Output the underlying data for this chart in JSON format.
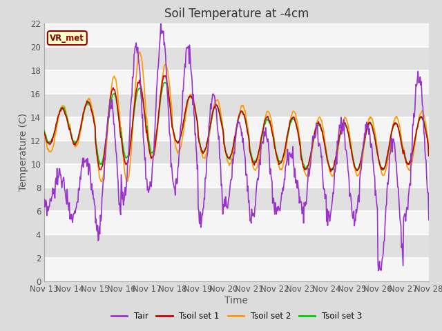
{
  "title": "Soil Temperature at -4cm",
  "xlabel": "Time",
  "ylabel": "Temperature (C)",
  "ylim": [
    0,
    22
  ],
  "yticks": [
    0,
    2,
    4,
    6,
    8,
    10,
    12,
    14,
    16,
    18,
    20,
    22
  ],
  "xtick_labels": [
    "Nov 13",
    "Nov 14",
    "Nov 15",
    "Nov 16",
    "Nov 17",
    "Nov 18",
    "Nov 19",
    "Nov 20",
    "Nov 21",
    "Nov 22",
    "Nov 23",
    "Nov 24",
    "Nov 25",
    "Nov 26",
    "Nov 27",
    "Nov 28"
  ],
  "annotation_text": "VR_met",
  "colors": {
    "Tair": "#9933CC",
    "Tsoil1": "#CC0000",
    "Tsoil2": "#FF9900",
    "Tsoil3": "#00CC00"
  },
  "line_widths": {
    "Tair": 1.2,
    "Tsoil1": 1.2,
    "Tsoil2": 1.2,
    "Tsoil3": 1.2
  },
  "legend_labels": [
    "Tair",
    "Tsoil set 1",
    "Tsoil set 2",
    "Tsoil set 3"
  ],
  "bg_color": "#DCDCDC",
  "plot_bg_color": "#F5F5F5",
  "grid_color": "#FFFFFF",
  "title_fontsize": 12,
  "axis_fontsize": 10,
  "tick_fontsize": 8.5
}
